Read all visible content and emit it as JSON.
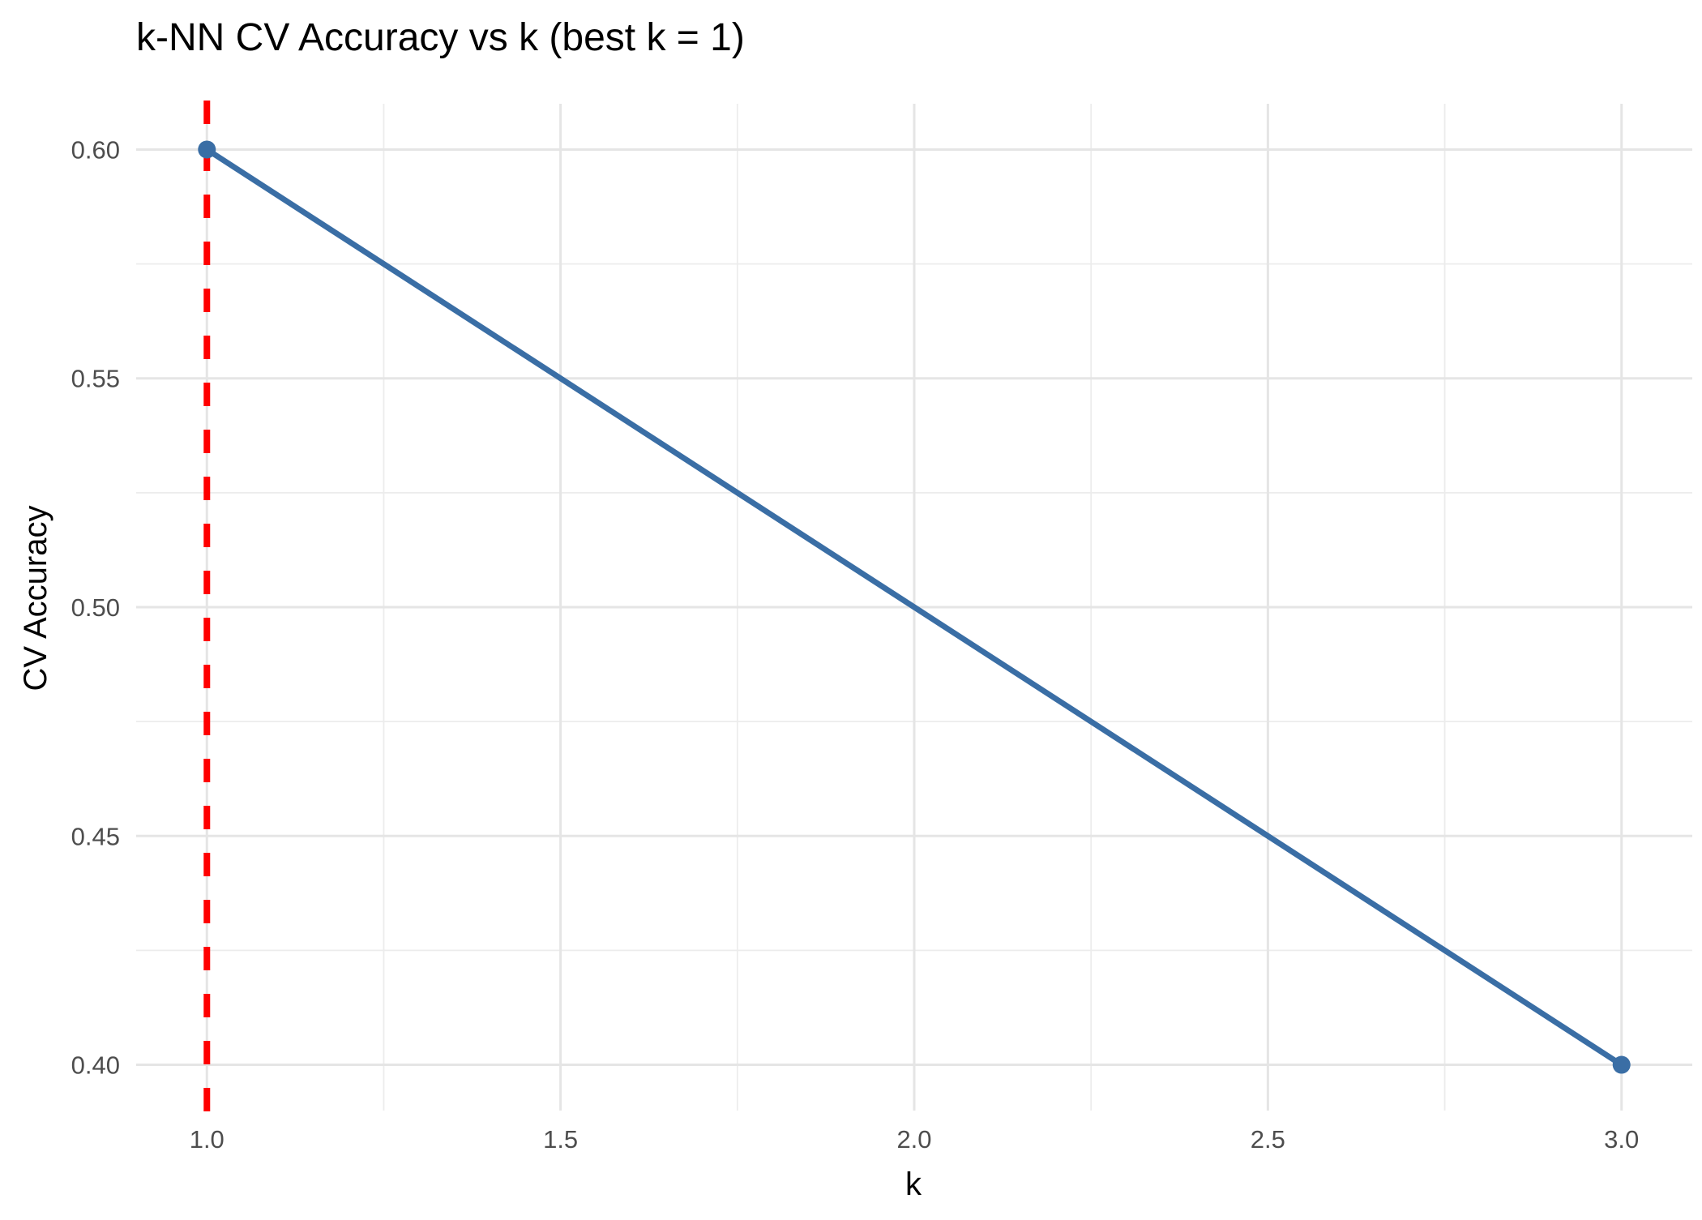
{
  "chart_data": {
    "type": "line",
    "title": "k-NN CV Accuracy vs k (best k = 1)",
    "xlabel": "k",
    "ylabel": "CV Accuracy",
    "x_ticks": [
      "1.0",
      "1.5",
      "2.0",
      "2.5",
      "3.0"
    ],
    "y_ticks": [
      "0.40",
      "0.45",
      "0.50",
      "0.55",
      "0.60"
    ],
    "xlim": [
      0.9,
      3.1
    ],
    "ylim": [
      0.39,
      0.61
    ],
    "grid": true,
    "series": [
      {
        "x": [
          1,
          3
        ],
        "y": [
          0.6,
          0.4
        ],
        "color": "#3a6ea5"
      }
    ],
    "annotations": [
      {
        "type": "vline",
        "x": 1,
        "style": "dashed",
        "color": "#ff0000"
      }
    ]
  }
}
